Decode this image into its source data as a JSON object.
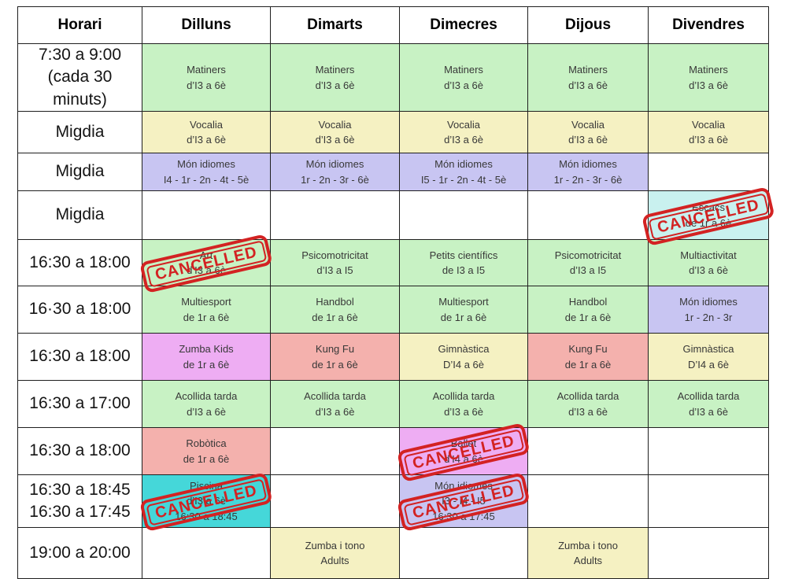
{
  "stamp_label": "CANCELLED",
  "colors": {
    "white": "#ffffff",
    "green": "#c8f2c4",
    "yellow": "#f5f1c2",
    "purple": "#c8c5f2",
    "cyan_light": "#c9f1ef",
    "cyan_bright": "#45d7d9",
    "magenta": "#eeadf3",
    "salmon": "#f4b1ad",
    "stamp_red": "#d32222"
  },
  "table": {
    "header": [
      "Horari",
      "Dilluns",
      "Dimarts",
      "Dimecres",
      "Dijous",
      "Divendres"
    ],
    "rows": [
      {
        "time": "7:30 a 9:00 (cada 30 minuts)",
        "cells": [
          {
            "lines": [
              "Matiners",
              "d’I3 a 6è"
            ],
            "color": "green",
            "cancelled": false
          },
          {
            "lines": [
              "Matiners",
              "d’I3 a 6è"
            ],
            "color": "green",
            "cancelled": false
          },
          {
            "lines": [
              "Matiners",
              "d’I3 a 6è"
            ],
            "color": "green",
            "cancelled": false
          },
          {
            "lines": [
              "Matiners",
              "d’I3 a 6è"
            ],
            "color": "green",
            "cancelled": false
          },
          {
            "lines": [
              "Matiners",
              "d’I3 a 6è"
            ],
            "color": "green",
            "cancelled": false
          }
        ]
      },
      {
        "time": "Migdia",
        "cells": [
          {
            "lines": [
              "Vocalia",
              "d’I3 a 6è"
            ],
            "color": "yellow",
            "cancelled": false
          },
          {
            "lines": [
              "Vocalia",
              "d’I3 a 6è"
            ],
            "color": "yellow",
            "cancelled": false
          },
          {
            "lines": [
              "Vocalia",
              "d’I3 a 6è"
            ],
            "color": "yellow",
            "cancelled": false
          },
          {
            "lines": [
              "Vocalia",
              "d’I3 a 6è"
            ],
            "color": "yellow",
            "cancelled": false
          },
          {
            "lines": [
              "Vocalia",
              "d’I3 a 6è"
            ],
            "color": "yellow",
            "cancelled": false
          }
        ]
      },
      {
        "time": "Migdia",
        "cells": [
          {
            "lines": [
              "Món idiomes",
              "I4 - 1r - 2n - 4t - 5è"
            ],
            "color": "purple",
            "cancelled": false
          },
          {
            "lines": [
              "Món idiomes",
              "1r - 2n - 3r - 6è"
            ],
            "color": "purple",
            "cancelled": false
          },
          {
            "lines": [
              "Món idiomes",
              "I5 - 1r - 2n - 4t - 5è"
            ],
            "color": "purple",
            "cancelled": false
          },
          {
            "lines": [
              "Món idiomes",
              "1r - 2n - 3r - 6è"
            ],
            "color": "purple",
            "cancelled": false
          },
          {
            "lines": [],
            "color": "white",
            "cancelled": false
          }
        ]
      },
      {
        "time": "Migdia",
        "cells": [
          {
            "lines": [],
            "color": "white",
            "cancelled": false
          },
          {
            "lines": [],
            "color": "white",
            "cancelled": false
          },
          {
            "lines": [],
            "color": "white",
            "cancelled": false
          },
          {
            "lines": [],
            "color": "white",
            "cancelled": false
          },
          {
            "lines": [
              "Escacs",
              "de 1r a 6è"
            ],
            "color": "cyan_light",
            "cancelled": true
          }
        ]
      },
      {
        "time": "16:30 a 18:00",
        "cells": [
          {
            "lines": [
              "Art",
              "d’I3 a 6è"
            ],
            "color": "green",
            "cancelled": true
          },
          {
            "lines": [
              "Psicomotricitat",
              "d’I3 a I5"
            ],
            "color": "green",
            "cancelled": false
          },
          {
            "lines": [
              "Petits científics",
              "de I3 a I5"
            ],
            "color": "green",
            "cancelled": false
          },
          {
            "lines": [
              "Psicomotricitat",
              "d’I3 a I5"
            ],
            "color": "green",
            "cancelled": false
          },
          {
            "lines": [
              "Multiactivitat",
              "d’I3 a 6è"
            ],
            "color": "green",
            "cancelled": false
          }
        ]
      },
      {
        "time": "16·30 a 18:00",
        "cells": [
          {
            "lines": [
              "Multiesport",
              "de 1r a 6è"
            ],
            "color": "green",
            "cancelled": false
          },
          {
            "lines": [
              "Handbol",
              "de 1r a 6è"
            ],
            "color": "green",
            "cancelled": false
          },
          {
            "lines": [
              "Multiesport",
              "de 1r a 6è"
            ],
            "color": "green",
            "cancelled": false
          },
          {
            "lines": [
              "Handbol",
              "de 1r a 6è"
            ],
            "color": "green",
            "cancelled": false
          },
          {
            "lines": [
              "Món idiomes",
              "1r - 2n - 3r"
            ],
            "color": "purple",
            "cancelled": false
          }
        ]
      },
      {
        "time": "16:30 a 18:00",
        "cells": [
          {
            "lines": [
              "Zumba Kids",
              "de 1r a 6è"
            ],
            "color": "magenta",
            "cancelled": false
          },
          {
            "lines": [
              "Kung Fu",
              "de 1r a 6è"
            ],
            "color": "salmon",
            "cancelled": false
          },
          {
            "lines": [
              "Gimnàstica",
              "D’I4 a 6è"
            ],
            "color": "yellow",
            "cancelled": false
          },
          {
            "lines": [
              "Kung Fu",
              "de 1r a 6è"
            ],
            "color": "salmon",
            "cancelled": false
          },
          {
            "lines": [
              "Gimnàstica",
              "D’I4 a 6è"
            ],
            "color": "yellow",
            "cancelled": false
          }
        ]
      },
      {
        "time": "16:30 a 17:00",
        "cells": [
          {
            "lines": [
              "Acollida tarda",
              "d’I3 a 6è"
            ],
            "color": "green",
            "cancelled": false
          },
          {
            "lines": [
              "Acollida tarda",
              "d’I3 a 6è"
            ],
            "color": "green",
            "cancelled": false
          },
          {
            "lines": [
              "Acollida tarda",
              "d’I3 a 6è"
            ],
            "color": "green",
            "cancelled": false
          },
          {
            "lines": [
              "Acollida tarda",
              "d’I3 a 6è"
            ],
            "color": "green",
            "cancelled": false
          },
          {
            "lines": [
              "Acollida tarda",
              "d’I3 a 6è"
            ],
            "color": "green",
            "cancelled": false
          }
        ]
      },
      {
        "time": "16:30 a 18:00",
        "cells": [
          {
            "lines": [
              "Robòtica",
              "de 1r a 6è"
            ],
            "color": "salmon",
            "cancelled": false
          },
          {
            "lines": [],
            "color": "white",
            "cancelled": false
          },
          {
            "lines": [
              "Ballet",
              "d’I4 a 6è"
            ],
            "color": "magenta",
            "cancelled": true
          },
          {
            "lines": [],
            "color": "white",
            "cancelled": false
          },
          {
            "lines": [],
            "color": "white",
            "cancelled": false
          }
        ]
      },
      {
        "time": "16:30 a 18:45\n16:30 a 17:45",
        "cells": [
          {
            "lines": [
              "Piscina",
              "d’I3 a 6è",
              "16:30 a 18:45"
            ],
            "color": "cyan_bright",
            "cancelled": true
          },
          {
            "lines": [],
            "color": "white",
            "cancelled": false
          },
          {
            "lines": [
              "Món idiomes",
              "I3 - I4 - I5",
              "16:30 a 17:45"
            ],
            "color": "purple",
            "cancelled": true
          },
          {
            "lines": [],
            "color": "white",
            "cancelled": false
          },
          {
            "lines": [],
            "color": "white",
            "cancelled": false
          }
        ]
      },
      {
        "time": "19:00 a 20:00",
        "cells": [
          {
            "lines": [],
            "color": "white",
            "cancelled": false
          },
          {
            "lines": [
              "Zumba i tono",
              "Adults"
            ],
            "color": "yellow",
            "cancelled": false
          },
          {
            "lines": [],
            "color": "white",
            "cancelled": false
          },
          {
            "lines": [
              "Zumba i tono",
              "Adults"
            ],
            "color": "yellow",
            "cancelled": false
          },
          {
            "lines": [],
            "color": "white",
            "cancelled": false
          }
        ]
      }
    ]
  }
}
